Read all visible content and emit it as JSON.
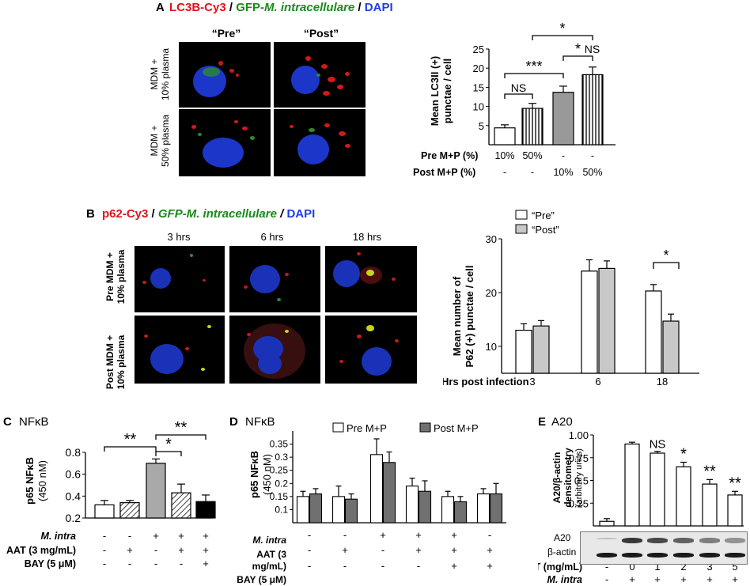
{
  "panelA": {
    "letter": "A",
    "title_parts": [
      {
        "text": "LC3B-Cy3",
        "color": "#e0141b",
        "italic": false
      },
      {
        "text": " / ",
        "color": "#000000",
        "italic": false
      },
      {
        "text": "GFP-",
        "color": "#1a8a1a",
        "italic": false
      },
      {
        "text": "M. intracellulare",
        "color": "#1a8a1a",
        "italic": true
      },
      {
        "text": " / ",
        "color": "#000000",
        "italic": false
      },
      {
        "text": "DAPI",
        "color": "#1e3ee6",
        "italic": false
      }
    ],
    "col_labels": [
      "“Pre”",
      "“Post”"
    ],
    "row_labels": [
      [
        "MDM +",
        "10% plasma"
      ],
      [
        "MDM +",
        "50% plasma"
      ]
    ],
    "table": {
      "row1_label": "Pre M+P (%)",
      "row1": [
        "10%",
        "50%",
        "-",
        "-"
      ],
      "row2_label": "Post M+P (%)",
      "row2": [
        "-",
        "-",
        "10%",
        "50%"
      ]
    }
  },
  "panelB": {
    "letter": "B",
    "title_parts": [
      {
        "text": "p62-Cy3",
        "color": "#e0141b",
        "italic": false
      },
      {
        "text": " / ",
        "color": "#000000",
        "italic": false
      },
      {
        "text": "GFP-M. intracellulare",
        "color": "#1a8a1a",
        "italic": true
      },
      {
        "text": " / ",
        "color": "#000000",
        "italic": true
      },
      {
        "text": "DAPI",
        "color": "#1e3ee6",
        "italic": false
      }
    ],
    "time_labels": [
      "3 hrs",
      "6 hrs",
      "18 hrs"
    ],
    "row_labels": [
      [
        "Pre MDM +",
        "10% plasma"
      ],
      [
        "Post MDM +",
        "10% plasma"
      ]
    ]
  },
  "panelC": {
    "letter": "C",
    "title": "NFκB"
  },
  "panelD": {
    "letter": "D",
    "title": "NFκB"
  },
  "panelE": {
    "letter": "E",
    "title": "A20",
    "blot_labels": [
      "A20",
      "β-actin"
    ]
  },
  "chart_data": [
    {
      "id": "A",
      "type": "bar",
      "ylabel": [
        "Mean LC3II (+)",
        "punctae / cell"
      ],
      "ylim": [
        0,
        25
      ],
      "yticks": [
        5,
        10,
        15,
        20,
        25
      ],
      "values": [
        4.4,
        9.5,
        13.7,
        18.3
      ],
      "errors": [
        0.8,
        1.3,
        1.6,
        2.0
      ],
      "fills": [
        "white",
        "hatch-vertical-light",
        "gray",
        "vertical-lines"
      ],
      "annotations": [
        {
          "label": "NS",
          "from": 0,
          "to": 1
        },
        {
          "label": "***",
          "from": 0,
          "to": 2
        },
        {
          "label": "*",
          "from": 2,
          "to": 3
        },
        {
          "label": "NS",
          "from": 2,
          "to": 3
        },
        {
          "label": "*",
          "from": 1,
          "to": 3
        }
      ]
    },
    {
      "id": "B",
      "type": "bar",
      "ylabel": [
        "Mean number of",
        "P62 (+) punctae / cell"
      ],
      "xlabel": "Hrs post infection",
      "categories": [
        "3",
        "6",
        "18"
      ],
      "ylim": [
        5,
        30
      ],
      "yticks": [
        10,
        20,
        30
      ],
      "series": [
        {
          "name": "“Pre”",
          "color": "#ffffff",
          "values": [
            13,
            24,
            20.3
          ],
          "errors": [
            1.2,
            2.1,
            1.2
          ]
        },
        {
          "name": "“Post”",
          "color": "#c8c8c8",
          "values": [
            13.8,
            24.5,
            14.7
          ],
          "errors": [
            1.0,
            1.4,
            1.3
          ]
        }
      ],
      "legend": "top",
      "annotations": [
        {
          "label": "*",
          "category": "18"
        }
      ]
    },
    {
      "id": "C",
      "type": "bar",
      "ylabel": [
        "p65 NFκB",
        "(450 nM)"
      ],
      "ylim": [
        0.2,
        0.8
      ],
      "yticks": [
        0.2,
        0.4,
        0.6,
        0.8
      ],
      "values": [
        0.32,
        0.34,
        0.7,
        0.43,
        0.35
      ],
      "errors": [
        0.04,
        0.02,
        0.04,
        0.08,
        0.06
      ],
      "fills": [
        "white",
        "diagonal-hatch",
        "gray",
        "diagonal-hatch",
        "black"
      ],
      "row_labels": [
        "M. intra",
        "AAT (3 mg/mL)",
        "BAY (5 μM)"
      ],
      "rows": [
        [
          "-",
          "-",
          "+",
          "+",
          "+"
        ],
        [
          "-",
          "+",
          "-",
          "+",
          "+"
        ],
        [
          "-",
          "-",
          "-",
          "-",
          "+"
        ]
      ],
      "annotations": [
        {
          "label": "**",
          "from": 0,
          "to": 2
        },
        {
          "label": "*",
          "from": 2,
          "to": 3
        },
        {
          "label": "**",
          "from": 2,
          "to": 4
        }
      ]
    },
    {
      "id": "D",
      "type": "bar",
      "ylabel": [
        "p65 NFκB",
        "(450 nM)"
      ],
      "ylim": [
        0.05,
        0.4
      ],
      "yticks": [
        0.1,
        0.15,
        0.2,
        0.25,
        0.3,
        0.35
      ],
      "series": [
        {
          "name": "Pre M+P",
          "color": "#ffffff",
          "values": [
            0.15,
            0.15,
            0.31,
            0.19,
            0.15,
            0.16
          ],
          "errors": [
            0.02,
            0.04,
            0.06,
            0.03,
            0.02,
            0.02
          ]
        },
        {
          "name": "Post M+P",
          "color": "#707070",
          "values": [
            0.16,
            0.14,
            0.28,
            0.17,
            0.13,
            0.16
          ],
          "errors": [
            0.02,
            0.02,
            0.04,
            0.04,
            0.02,
            0.04
          ]
        }
      ],
      "legend": "top",
      "row_labels": [
        "M. intra",
        "AAT (3",
        "mg/mL)",
        "BAY (5 μM)"
      ],
      "rows": [
        [
          "-",
          "-",
          "+",
          "+",
          "+",
          "-"
        ],
        [
          "-",
          "+",
          "-",
          "+",
          "+",
          "+"
        ],
        [
          "-",
          "-",
          "-",
          "-",
          "+",
          "+"
        ]
      ]
    },
    {
      "id": "E",
      "type": "bar",
      "ylabel": [
        "A20/β-actin",
        "densitometry",
        "(arbitrary units)"
      ],
      "ylim": [
        0,
        1.0
      ],
      "yticks": [
        0.25,
        0.5,
        0.75,
        1.0
      ],
      "values": [
        0.05,
        0.9,
        0.8,
        0.65,
        0.46,
        0.34
      ],
      "errors": [
        0.03,
        0.02,
        0.02,
        0.05,
        0.05,
        0.04
      ],
      "annotations": [
        "",
        "",
        "NS",
        "*",
        "**",
        "**"
      ],
      "row_labels": [
        "AAT (mg/mL)",
        "M. intra"
      ],
      "rows": [
        [
          "-",
          "0",
          "1",
          "2",
          "3",
          "5"
        ],
        [
          "-",
          "+",
          "+",
          "+",
          "+",
          "+"
        ]
      ]
    }
  ]
}
